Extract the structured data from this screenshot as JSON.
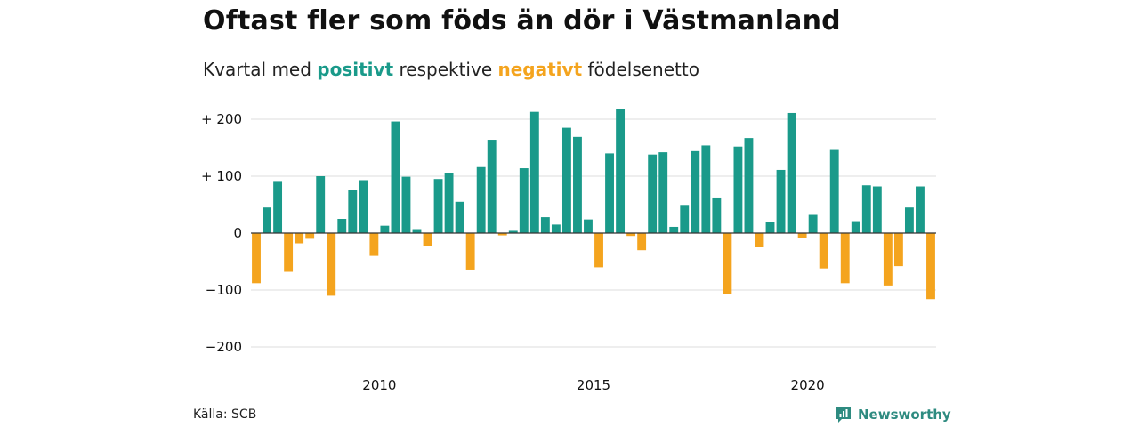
{
  "title": "Oftast fler som föds än dör i Västmanland",
  "subtitle": {
    "prefix": "Kvartal med",
    "positive": "positivt",
    "middle": "respektive",
    "negative": "negativt",
    "suffix": "födelsenetto"
  },
  "source": "Källa: SCB",
  "brand": {
    "name": "Newsworthy",
    "icon": "newsworthy-logo-icon"
  },
  "colors": {
    "positive": "#1a9a8a",
    "negative": "#f4a41e",
    "grid": "#dddddd",
    "axis": "#333333"
  },
  "chart_data": {
    "type": "bar",
    "title": "Oftast fler som föds än dör i Västmanland",
    "subtitle": "Kvartal med positivt respektive negativt födelsenetto",
    "xlabel": "",
    "ylabel": "",
    "ylim": [
      -200,
      200
    ],
    "yticks": [
      {
        "value": 200,
        "label": "+ 200"
      },
      {
        "value": 100,
        "label": "+ 100"
      },
      {
        "value": 0,
        "label": "0"
      },
      {
        "value": -100,
        "label": "−100"
      },
      {
        "value": -200,
        "label": "−200"
      }
    ],
    "xticks": [
      {
        "label": "2010",
        "quarter_index": 11.5
      },
      {
        "label": "2015",
        "quarter_index": 31.5
      },
      {
        "label": "2020",
        "quarter_index": 51.5
      }
    ],
    "start_year": 2007,
    "values": [
      -88,
      45,
      90,
      -68,
      -18,
      -10,
      100,
      -110,
      25,
      75,
      93,
      -40,
      13,
      196,
      99,
      7,
      -22,
      95,
      106,
      55,
      -64,
      116,
      164,
      -4,
      4,
      114,
      213,
      28,
      15,
      185,
      169,
      24,
      -60,
      140,
      218,
      -5,
      -30,
      138,
      142,
      11,
      48,
      144,
      154,
      61,
      -107,
      152,
      167,
      -25,
      20,
      111,
      211,
      -8,
      32,
      -62,
      146,
      -88,
      21,
      84,
      82,
      -92,
      -58,
      45,
      82,
      -116
    ],
    "grid": true,
    "legend": "none"
  }
}
